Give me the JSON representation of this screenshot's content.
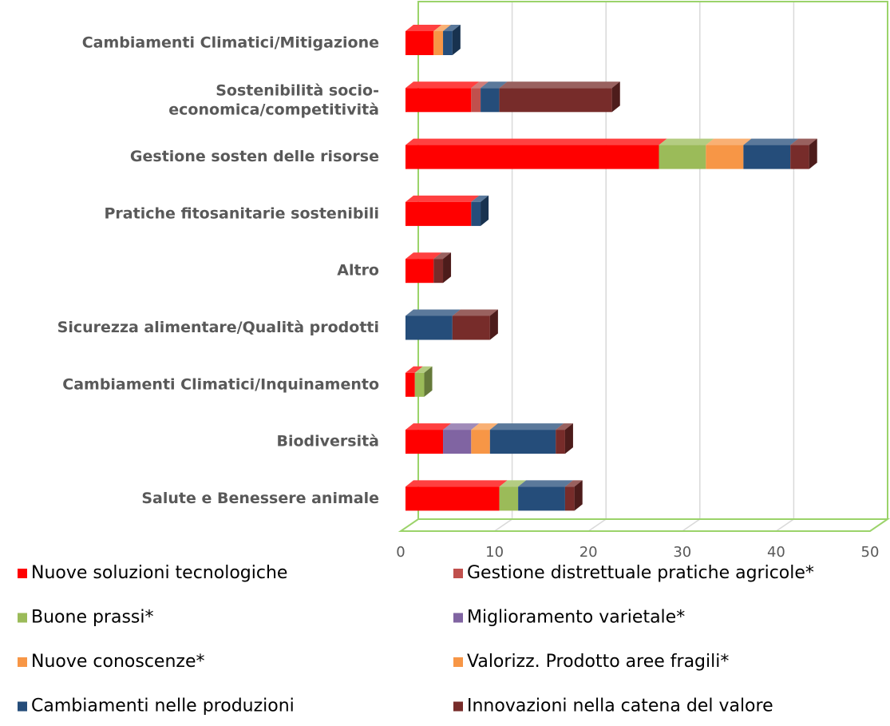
{
  "chart_data": {
    "type": "bar3d_stacked_horizontal",
    "categories": [
      "Cambiamenti Climatici/Mitigazione",
      "Sostenibilità socio-economica/competitività",
      "Gestione sosten delle risorse",
      "Pratiche fitosanitarie sostenibili",
      "Altro",
      "Sicurezza alimentare/Qualità prodotti",
      "Cambiamenti Climatici/Inquinamento",
      "Biodiversità",
      "Salute e Benessere animale"
    ],
    "series": [
      {
        "name": "Nuove soluzioni tecnologiche",
        "color": "#ff0000",
        "values": [
          3,
          7,
          27,
          7,
          3,
          0,
          1,
          4,
          10
        ]
      },
      {
        "name": "Gestione distrettuale pratiche agricole*",
        "color": "#c0504d",
        "values": [
          0,
          1,
          0,
          0,
          0,
          0,
          0,
          0,
          0
        ]
      },
      {
        "name": "Buone prassi*",
        "color": "#9bbb59",
        "values": [
          0,
          0,
          5,
          0,
          0,
          0,
          1,
          0,
          2
        ]
      },
      {
        "name": "Miglioramento varietale*",
        "color": "#8064a2",
        "values": [
          0,
          0,
          0,
          0,
          0,
          0,
          0,
          3,
          0
        ]
      },
      {
        "name": "Nuove conoscenze*",
        "color": "#f79646",
        "values": [
          1,
          0,
          4,
          0,
          0,
          0,
          0,
          2,
          0
        ]
      },
      {
        "name": "Valorizz. Prodotto aree fragili*",
        "color": "#f79646",
        "values": [
          0,
          0,
          0,
          0,
          0,
          0,
          0,
          0,
          0
        ]
      },
      {
        "name": "Cambiamenti nelle produzioni",
        "color": "#254d7a",
        "values": [
          1,
          2,
          5,
          1,
          0,
          5,
          0,
          7,
          5
        ]
      },
      {
        "name": "Innovazioni nella catena del valore",
        "color": "#772c2a",
        "values": [
          0,
          12,
          2,
          0,
          1,
          4,
          0,
          1,
          1
        ]
      }
    ],
    "xlim": [
      0,
      50
    ],
    "xticks": [
      0,
      10,
      20,
      30,
      40,
      50
    ],
    "grid": true,
    "border_color": "#9bd36a"
  }
}
